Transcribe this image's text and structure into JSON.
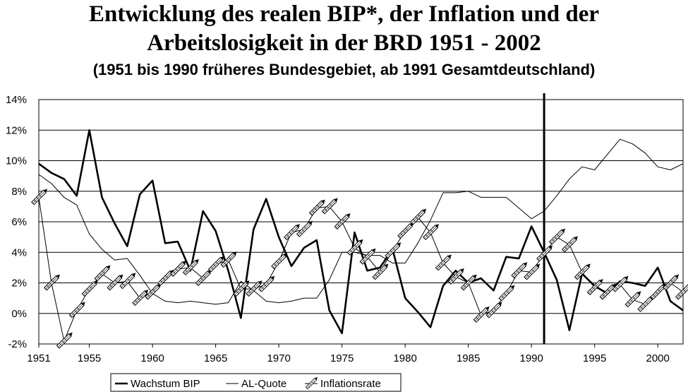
{
  "chart_data": {
    "type": "line",
    "title_line1": "Entwicklung des realen BIP*, der Inflation und der",
    "title_line2": "Arbeitslosigkeit in der BRD 1951 - 2002",
    "subtitle": "(1951 bis 1990 früheres Bundesgebiet, ab 1991 Gesamtdeutschland)",
    "xlabel": "",
    "ylabel": "",
    "x": [
      1951,
      1952,
      1953,
      1954,
      1955,
      1956,
      1957,
      1958,
      1959,
      1960,
      1961,
      1962,
      1963,
      1964,
      1965,
      1966,
      1967,
      1968,
      1969,
      1970,
      1971,
      1972,
      1973,
      1974,
      1975,
      1976,
      1977,
      1978,
      1979,
      1980,
      1981,
      1982,
      1983,
      1984,
      1985,
      1986,
      1987,
      1988,
      1989,
      1990,
      1991,
      1992,
      1993,
      1994,
      1995,
      1996,
      1997,
      1998,
      1999,
      2000,
      2001,
      2002
    ],
    "xlim": [
      1951,
      2002
    ],
    "ylim": [
      -2,
      14
    ],
    "x_ticks": [
      "1951",
      "1955",
      "1960",
      "1965",
      "1970",
      "1975",
      "1980",
      "1985",
      "1990",
      "1995",
      "2000"
    ],
    "x_tick_values": [
      1951,
      1955,
      1960,
      1965,
      1970,
      1975,
      1980,
      1985,
      1990,
      1995,
      2000
    ],
    "y_ticks": [
      "-2%",
      "0%",
      "2%",
      "4%",
      "6%",
      "8%",
      "10%",
      "12%",
      "14%"
    ],
    "y_tick_values": [
      -2,
      0,
      2,
      4,
      6,
      8,
      10,
      12,
      14
    ],
    "grid": true,
    "legend_position": "bottom",
    "vertical_marker_x": 1991,
    "series": [
      {
        "name": "Wachstum BIP",
        "style": "thick-solid",
        "values": [
          9.8,
          9.2,
          8.8,
          7.7,
          12.0,
          7.6,
          5.9,
          4.4,
          7.8,
          8.7,
          4.6,
          4.7,
          2.8,
          6.7,
          5.4,
          2.8,
          -0.3,
          5.5,
          7.5,
          5.0,
          3.1,
          4.3,
          4.8,
          0.2,
          -1.3,
          5.3,
          2.8,
          3.0,
          4.2,
          1.0,
          0.1,
          -0.9,
          1.8,
          2.8,
          2.0,
          2.3,
          1.5,
          3.7,
          3.6,
          5.7,
          4.0,
          2.2,
          -1.1,
          2.6,
          1.8,
          1.3,
          2.1,
          2.0,
          1.8,
          3.0,
          0.8,
          0.2
        ]
      },
      {
        "name": "AL-Quote",
        "style": "thin-solid",
        "values": [
          9.1,
          8.5,
          7.6,
          7.1,
          5.2,
          4.2,
          3.5,
          3.6,
          2.5,
          1.3,
          0.8,
          0.7,
          0.8,
          0.7,
          0.6,
          0.7,
          2.1,
          1.5,
          0.8,
          0.7,
          0.8,
          1.0,
          1.0,
          2.2,
          4.0,
          4.0,
          3.8,
          3.8,
          3.3,
          3.3,
          4.6,
          6.1,
          7.9,
          7.9,
          8.0,
          7.6,
          7.6,
          7.6,
          6.9,
          6.2,
          6.7,
          7.7,
          8.8,
          9.6,
          9.4,
          10.4,
          11.4,
          11.1,
          10.5,
          9.6,
          9.4,
          9.8
        ]
      },
      {
        "name": "Inflationsrate",
        "style": "pencil-marker",
        "values": [
          7.6,
          2.0,
          -1.8,
          0.2,
          1.6,
          2.6,
          2.0,
          2.1,
          1.0,
          1.4,
          2.3,
          2.9,
          3.0,
          2.3,
          3.2,
          3.5,
          1.6,
          1.6,
          1.9,
          3.4,
          5.3,
          5.5,
          6.9,
          7.0,
          6.0,
          4.3,
          3.7,
          2.7,
          4.1,
          5.4,
          6.3,
          5.3,
          3.3,
          2.4,
          2.0,
          -0.1,
          0.2,
          1.3,
          2.8,
          2.7,
          3.9,
          5.0,
          4.5,
          2.7,
          1.7,
          1.4,
          1.9,
          0.9,
          0.6,
          1.4,
          2.0,
          1.4
        ]
      }
    ]
  }
}
